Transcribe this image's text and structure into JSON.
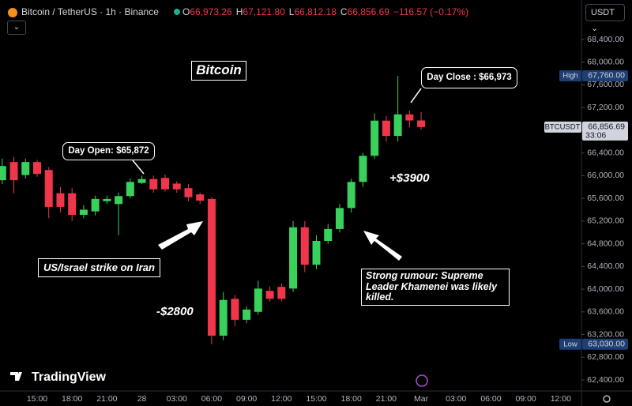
{
  "chart_data": {
    "type": "candlestick",
    "header": {
      "symbol": "Bitcoin / TetherUS · 1h · Binance",
      "ohlc": [
        {
          "key": "O",
          "value": 66973.26,
          "label": "66,973.26"
        },
        {
          "key": "H",
          "value": 67121.8,
          "label": "67,121.80"
        },
        {
          "key": "L",
          "value": 66812.18,
          "label": "66,812.18"
        },
        {
          "key": "C",
          "value": 66856.69,
          "label": "66,856.69"
        }
      ],
      "change": "−116.57 (−0.17%)"
    },
    "currency": "USDT",
    "watermark": "TradingView",
    "categories": [
      null,
      null,
      null,
      "15:00",
      null,
      null,
      "18:00",
      null,
      null,
      "21:00",
      null,
      null,
      "28",
      null,
      null,
      "03:00",
      null,
      null,
      "06:00",
      null,
      null,
      "09:00",
      null,
      null,
      "12:00",
      null,
      null,
      "15:00",
      null,
      null,
      "18:00",
      null,
      null,
      "21:00",
      null,
      null,
      "Mar",
      null,
      null,
      "03:00",
      null,
      null,
      "06:00",
      null,
      null,
      "09:00",
      null,
      null,
      "12:00"
    ],
    "open": [
      65920,
      66240,
      66010,
      66240,
      66100,
      65690,
      65690,
      65310,
      65370,
      65550,
      65500,
      65640,
      65872,
      65940,
      65960,
      65860,
      65780,
      65670,
      65590,
      63180,
      63830,
      63460,
      63600,
      63970,
      64040,
      64010,
      65090,
      64430,
      64850,
      65060,
      65430,
      65890,
      66350,
      66970,
      66700,
      67080,
      66973.26,
      null,
      null,
      null,
      null,
      null,
      null,
      null,
      null,
      null,
      null,
      null,
      null
    ],
    "high": [
      66300,
      66330,
      66300,
      66280,
      66150,
      65800,
      65780,
      65480,
      65650,
      65650,
      65700,
      65950,
      66000,
      66000,
      66020,
      65900,
      65850,
      65700,
      65620,
      63950,
      63900,
      63700,
      64150,
      64050,
      64100,
      65200,
      65200,
      64950,
      65150,
      65500,
      65950,
      66400,
      67100,
      67050,
      67760,
      67150,
      67121.8,
      null,
      null,
      null,
      null,
      null,
      null,
      null,
      null,
      null,
      null,
      null,
      null
    ],
    "low": [
      65850,
      65690,
      65950,
      65980,
      65250,
      65350,
      65200,
      65250,
      65300,
      65500,
      64950,
      65600,
      65850,
      65700,
      65720,
      65700,
      65550,
      65500,
      63030,
      63100,
      63350,
      63400,
      63550,
      63780,
      63780,
      63950,
      64300,
      64350,
      64800,
      65000,
      65350,
      65800,
      66300,
      66600,
      66600,
      66850,
      66812.18,
      null,
      null,
      null,
      null,
      null,
      null,
      null,
      null,
      null,
      null,
      null,
      null
    ],
    "close": [
      66170,
      65920,
      66240,
      66030,
      65450,
      65450,
      65310,
      65400,
      65590,
      65590,
      65640,
      65890,
      65940,
      65760,
      65760,
      65760,
      65620,
      65560,
      63180,
      63810,
      63460,
      63640,
      64010,
      63830,
      63830,
      65090,
      64430,
      64850,
      65060,
      65430,
      65890,
      66350,
      66970,
      66700,
      67080,
      66973,
      66856.69,
      null,
      null,
      null,
      null,
      null,
      null,
      null,
      null,
      null,
      null,
      null,
      null
    ],
    "up_color": "#3ad05c",
    "down_color": "#f0364a",
    "grid": false,
    "ylim": [
      62205,
      69096
    ],
    "yticks": [
      {
        "value": 62400,
        "label": "62,400.00"
      },
      {
        "value": 62800,
        "label": "62,800.00"
      },
      {
        "value": 63200,
        "label": "63,200.00"
      },
      {
        "value": 63600,
        "label": "63,600.00"
      },
      {
        "value": 64000,
        "label": "64,000.00"
      },
      {
        "value": 64400,
        "label": "64,400.00"
      },
      {
        "value": 64800,
        "label": "64,800.00"
      },
      {
        "value": 65200,
        "label": "65,200.00"
      },
      {
        "value": 65600,
        "label": "65,600.00"
      },
      {
        "value": 66000,
        "label": "66,000.00"
      },
      {
        "value": 66400,
        "label": "66,400.00"
      },
      {
        "value": 66800,
        "label": "66,800.00"
      },
      {
        "value": 67200,
        "label": "67,200.00"
      },
      {
        "value": 67600,
        "label": "67,600.00"
      },
      {
        "value": 68000,
        "label": "68,000.00"
      },
      {
        "value": 68400,
        "label": "68,400.00"
      }
    ],
    "price_markers": [
      {
        "name": "High",
        "value": 67760,
        "label": "67,760.00",
        "color": "#1e3f73"
      },
      {
        "name": "BTCUSDT",
        "value": 66856.69,
        "label": "66,856.69",
        "countdown": "33:06",
        "color": "#d1d4dc"
      },
      {
        "name": "Low",
        "value": 63030,
        "label": "63,030.00",
        "color": "#1e3f73"
      }
    ],
    "annotations": [
      "Bitcoin",
      "Day Open: $65,872",
      "Day Close : $66,973",
      "+$3900",
      "US/Israel strike on Iran",
      "-$2800",
      "Strong rumour: Supreme Leader Khamenei was likely killed."
    ]
  }
}
